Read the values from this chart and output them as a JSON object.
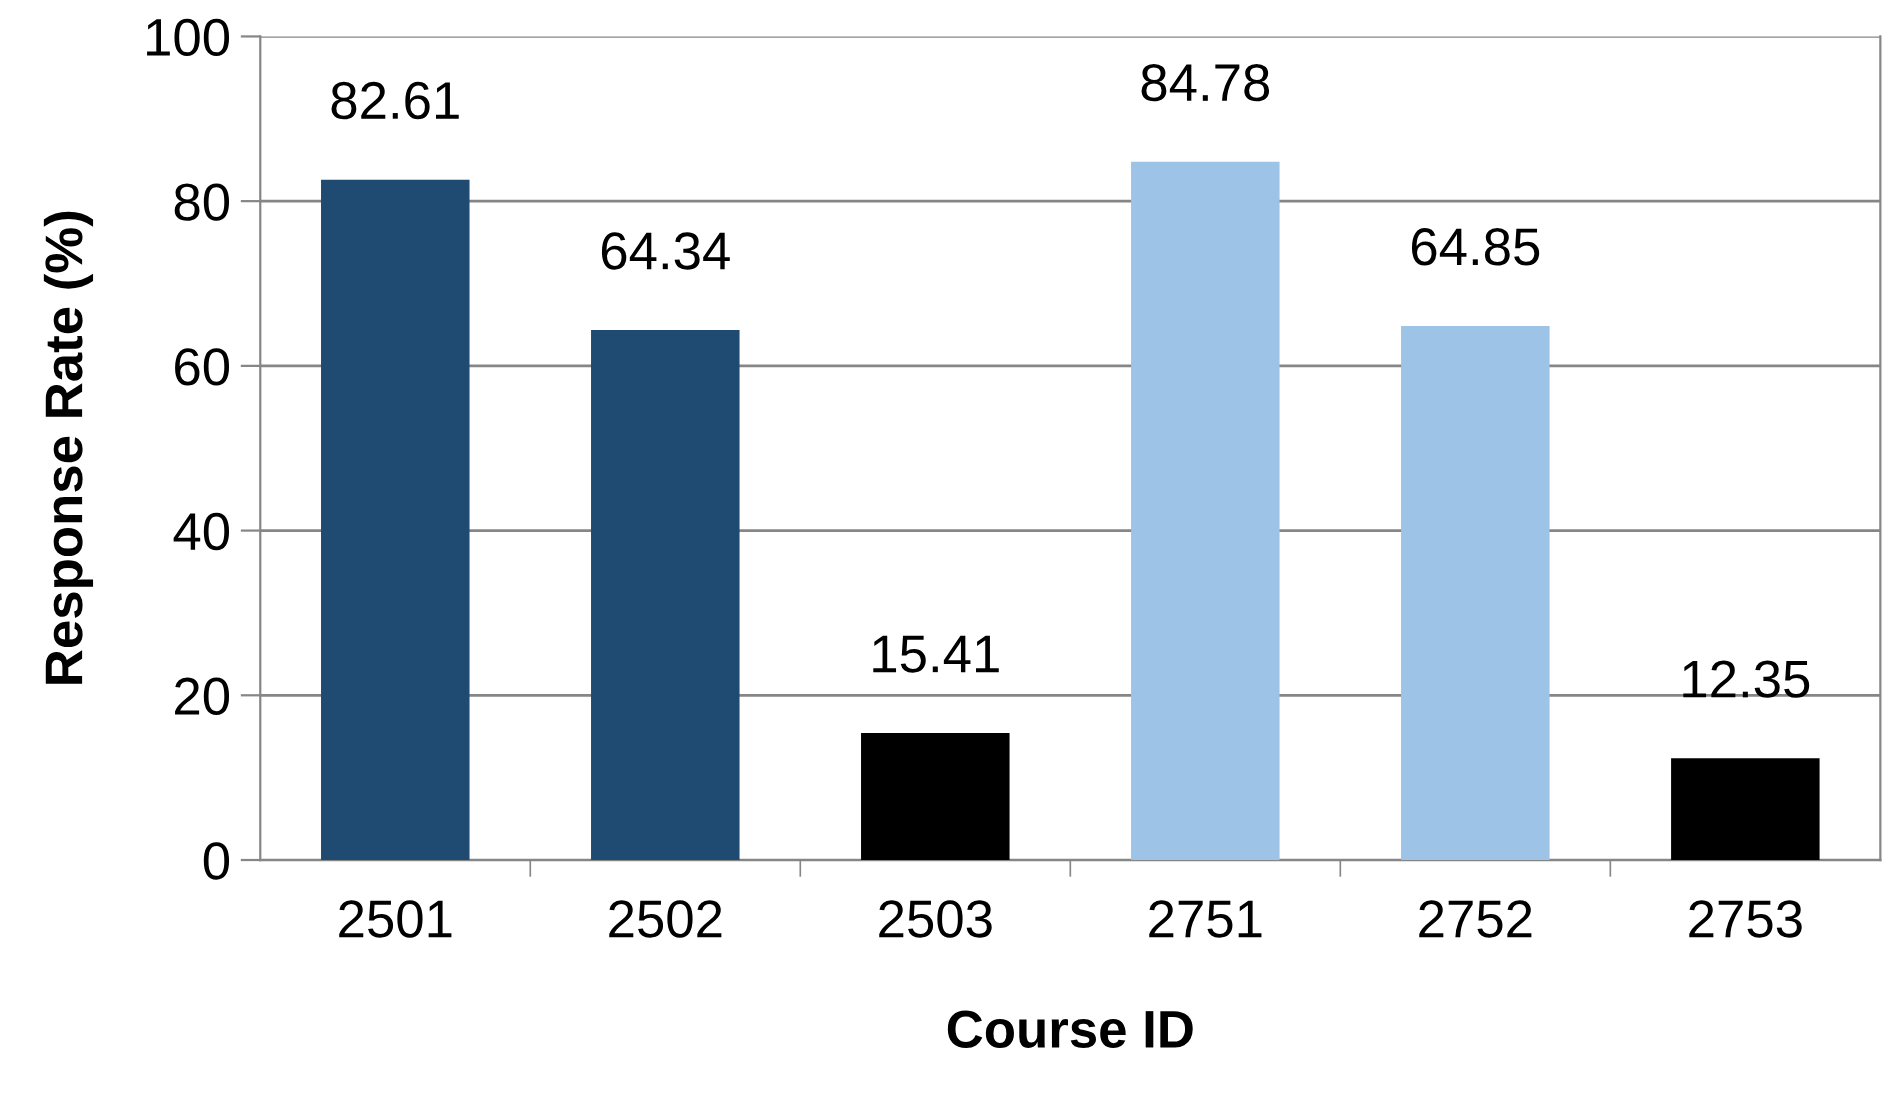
{
  "chart_data": {
    "type": "bar",
    "xlabel": "Course ID",
    "ylabel": "Response Rate (%)",
    "categories": [
      "2501",
      "2502",
      "2503",
      "2751",
      "2752",
      "2753"
    ],
    "values": [
      82.61,
      64.34,
      15.41,
      84.78,
      64.85,
      12.35
    ],
    "colors": [
      "#1f4a72",
      "#1f4a72",
      "#000000",
      "#9dc3e6",
      "#9dc3e6",
      "#000000"
    ],
    "data_labels": true,
    "ylim": [
      0,
      100
    ],
    "yticks": [
      0,
      20,
      40,
      60,
      80,
      100
    ],
    "grid": "y"
  }
}
